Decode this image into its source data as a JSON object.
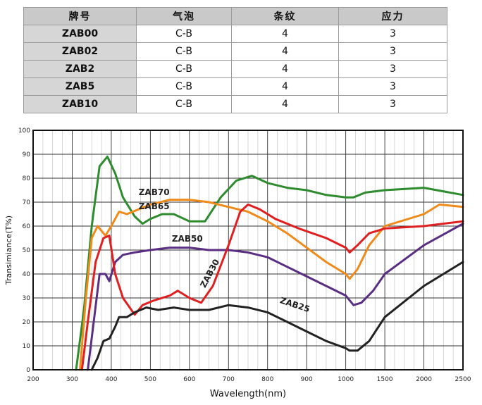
{
  "table": {
    "headers": [
      "牌号",
      "气泡",
      "条纹",
      "应力"
    ],
    "rows": [
      [
        "ZAB00",
        "C-B",
        "4",
        "3"
      ],
      [
        "ZAB02",
        "C-B",
        "4",
        "3"
      ],
      [
        "ZAB2",
        "C-B",
        "4",
        "3"
      ],
      [
        "ZAB5",
        "C-B",
        "4",
        "3"
      ],
      [
        "ZAB10",
        "C-B",
        "4",
        "3"
      ]
    ]
  },
  "chart_data": {
    "type": "line",
    "xlabel": "Wavelength(nm)",
    "ylabel": "Transimiance(T%)",
    "x_ticks": [
      200,
      300,
      400,
      500,
      600,
      700,
      800,
      900,
      1000,
      1500,
      2000,
      2500
    ],
    "y_ticks": [
      0,
      10,
      20,
      30,
      40,
      50,
      60,
      70,
      80,
      90,
      100
    ],
    "ylim": [
      0,
      100
    ],
    "grid": true,
    "series": [
      {
        "name": "ZAB70",
        "color": "#2e8b2e",
        "points": [
          [
            310,
            0
          ],
          [
            330,
            25
          ],
          [
            350,
            60
          ],
          [
            370,
            85
          ],
          [
            390,
            89
          ],
          [
            410,
            82
          ],
          [
            430,
            72
          ],
          [
            460,
            64
          ],
          [
            480,
            61
          ],
          [
            500,
            63
          ],
          [
            530,
            65
          ],
          [
            560,
            65
          ],
          [
            600,
            62
          ],
          [
            640,
            62
          ],
          [
            680,
            72
          ],
          [
            720,
            79
          ],
          [
            760,
            81
          ],
          [
            800,
            78
          ],
          [
            850,
            76
          ],
          [
            900,
            75
          ],
          [
            950,
            73
          ],
          [
            1000,
            72
          ],
          [
            1100,
            72
          ],
          [
            1250,
            74
          ],
          [
            1500,
            75
          ],
          [
            2000,
            76
          ],
          [
            2500,
            73
          ]
        ]
      },
      {
        "name": "ZAB65",
        "color": "#f08a1a",
        "points": [
          [
            320,
            0
          ],
          [
            335,
            30
          ],
          [
            350,
            55
          ],
          [
            365,
            60
          ],
          [
            385,
            56
          ],
          [
            400,
            60
          ],
          [
            420,
            66
          ],
          [
            440,
            65
          ],
          [
            470,
            67
          ],
          [
            500,
            69
          ],
          [
            550,
            71
          ],
          [
            600,
            71
          ],
          [
            650,
            70
          ],
          [
            700,
            68
          ],
          [
            750,
            66
          ],
          [
            800,
            62
          ],
          [
            850,
            57
          ],
          [
            900,
            51
          ],
          [
            950,
            45
          ],
          [
            1000,
            40
          ],
          [
            1050,
            38
          ],
          [
            1150,
            42
          ],
          [
            1300,
            52
          ],
          [
            1500,
            60
          ],
          [
            2000,
            65
          ],
          [
            2200,
            69
          ],
          [
            2500,
            68
          ]
        ]
      },
      {
        "name": "ZAB50",
        "color": "#5a2e82",
        "points": [
          [
            340,
            0
          ],
          [
            355,
            20
          ],
          [
            370,
            40
          ],
          [
            385,
            40
          ],
          [
            395,
            37
          ],
          [
            410,
            45
          ],
          [
            430,
            48
          ],
          [
            460,
            49
          ],
          [
            500,
            50
          ],
          [
            550,
            51
          ],
          [
            600,
            51
          ],
          [
            650,
            50
          ],
          [
            700,
            50
          ],
          [
            750,
            49
          ],
          [
            800,
            47
          ],
          [
            850,
            43
          ],
          [
            900,
            39
          ],
          [
            950,
            35
          ],
          [
            1000,
            31
          ],
          [
            1050,
            29
          ],
          [
            1100,
            27
          ],
          [
            1200,
            28
          ],
          [
            1350,
            33
          ],
          [
            1500,
            40
          ],
          [
            2000,
            52
          ],
          [
            2500,
            61
          ]
        ]
      },
      {
        "name": "ZAB30",
        "color": "#e02020",
        "points": [
          [
            325,
            0
          ],
          [
            340,
            20
          ],
          [
            360,
            45
          ],
          [
            380,
            55
          ],
          [
            395,
            56
          ],
          [
            410,
            40
          ],
          [
            430,
            30
          ],
          [
            460,
            23
          ],
          [
            480,
            27
          ],
          [
            510,
            29
          ],
          [
            550,
            31
          ],
          [
            570,
            33
          ],
          [
            600,
            30
          ],
          [
            630,
            28
          ],
          [
            660,
            35
          ],
          [
            700,
            52
          ],
          [
            730,
            66
          ],
          [
            750,
            69
          ],
          [
            780,
            67
          ],
          [
            820,
            63
          ],
          [
            880,
            59
          ],
          [
            950,
            55
          ],
          [
            1000,
            51
          ],
          [
            1050,
            49
          ],
          [
            1150,
            52
          ],
          [
            1300,
            57
          ],
          [
            1500,
            59
          ],
          [
            2000,
            60
          ],
          [
            2500,
            62
          ]
        ]
      },
      {
        "name": "ZAB25",
        "color": "#222222",
        "points": [
          [
            350,
            0
          ],
          [
            365,
            5
          ],
          [
            380,
            12
          ],
          [
            395,
            13
          ],
          [
            410,
            18
          ],
          [
            420,
            22
          ],
          [
            440,
            22
          ],
          [
            460,
            24
          ],
          [
            490,
            26
          ],
          [
            520,
            25
          ],
          [
            560,
            26
          ],
          [
            600,
            25
          ],
          [
            650,
            25
          ],
          [
            700,
            27
          ],
          [
            750,
            26
          ],
          [
            800,
            24
          ],
          [
            850,
            20
          ],
          [
            900,
            16
          ],
          [
            950,
            12
          ],
          [
            1000,
            9
          ],
          [
            1050,
            8
          ],
          [
            1150,
            8
          ],
          [
            1300,
            12
          ],
          [
            1500,
            22
          ],
          [
            2000,
            35
          ],
          [
            2500,
            45
          ]
        ]
      }
    ],
    "series_labels": [
      "ZAB70",
      "ZAB65",
      "ZAB50",
      "ZAB30",
      "ZAB25"
    ]
  }
}
